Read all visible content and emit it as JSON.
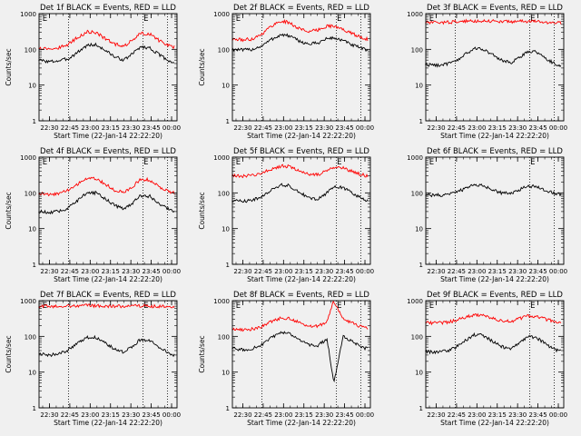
{
  "figure": {
    "background": "#f0f0f0",
    "events_color": "#000000",
    "lld_color": "#ff0000",
    "dotted_line_color": "#000000"
  },
  "chart_data": [
    {
      "type": "line",
      "title": "Det 1f BLACK = Events, RED = LLD",
      "ylabel": "Counts/sec",
      "xlabel": "Start Time (22-Jan-14 22:22:20)",
      "yscale": "log",
      "ylim": [
        1,
        1000
      ],
      "yticks": [
        "1",
        "10",
        "100",
        "1000"
      ],
      "xticks": [
        "22:30",
        "22:45",
        "23:00",
        "23:15",
        "23:30",
        "23:45",
        "00:00"
      ],
      "markers": [
        "E",
        "E"
      ],
      "series": [
        {
          "role": "Events",
          "color": "#000000",
          "x": [
            "22:22",
            "22:30",
            "22:37",
            "22:44",
            "22:51",
            "22:58",
            "23:04",
            "23:11",
            "23:18",
            "23:25",
            "23:32",
            "23:37",
            "23:44",
            "23:51",
            "23:58",
            "00:02"
          ],
          "y": [
            50,
            45,
            48,
            55,
            85,
            130,
            135,
            95,
            62,
            50,
            80,
            118,
            110,
            70,
            48,
            42
          ]
        },
        {
          "role": "LLD",
          "color": "#ff0000",
          "x": [
            "22:22",
            "22:30",
            "22:37",
            "22:44",
            "22:51",
            "22:58",
            "23:04",
            "23:11",
            "23:18",
            "23:25",
            "23:32",
            "23:37",
            "23:44",
            "23:51",
            "23:58",
            "00:02"
          ],
          "y": [
            110,
            105,
            110,
            140,
            220,
            310,
            300,
            200,
            140,
            125,
            190,
            280,
            270,
            175,
            125,
            115
          ]
        }
      ]
    },
    {
      "type": "line",
      "title": "Det 2f BLACK = Events, RED = LLD",
      "ylabel": "Counts/sec",
      "xlabel": "Start Time (22-Jan-14 22:22:20)",
      "yscale": "log",
      "ylim": [
        1,
        1000
      ],
      "yticks": [
        "1",
        "10",
        "100",
        "1000"
      ],
      "xticks": [
        "22:30",
        "22:45",
        "23:00",
        "23:15",
        "23:30",
        "23:45",
        "00:00"
      ],
      "markers": [
        "E",
        "E"
      ],
      "series": [
        {
          "role": "Events",
          "color": "#000000",
          "x": [
            "22:22",
            "22:30",
            "22:37",
            "22:44",
            "22:51",
            "22:58",
            "23:04",
            "23:11",
            "23:18",
            "23:25",
            "23:32",
            "23:37",
            "23:44",
            "23:51",
            "23:58",
            "00:02"
          ],
          "y": [
            100,
            95,
            100,
            125,
            190,
            255,
            240,
            175,
            140,
            150,
            200,
            210,
            175,
            130,
            105,
            95
          ]
        },
        {
          "role": "LLD",
          "color": "#ff0000",
          "x": [
            "22:22",
            "22:30",
            "22:37",
            "22:44",
            "22:51",
            "22:58",
            "23:04",
            "23:11",
            "23:18",
            "23:25",
            "23:32",
            "23:37",
            "23:44",
            "23:51",
            "23:58",
            "00:02"
          ],
          "y": [
            190,
            185,
            195,
            270,
            450,
            620,
            560,
            390,
            320,
            340,
            460,
            440,
            360,
            270,
            215,
            190
          ]
        }
      ]
    },
    {
      "type": "line",
      "title": "Det 3f BLACK = Events, RED = LLD",
      "ylabel": "",
      "xlabel": "Start Time (22-Jan-14 22:22:20)",
      "yscale": "log",
      "ylim": [
        1,
        1000
      ],
      "yticks": [
        "1",
        "10",
        "100",
        "1000"
      ],
      "xticks": [
        "22:30",
        "22:45",
        "23:00",
        "23:15",
        "23:30",
        "23:45",
        "00:00"
      ],
      "markers": [
        "E",
        "E"
      ],
      "series": [
        {
          "role": "Events",
          "color": "#000000",
          "x": [
            "22:22",
            "22:30",
            "22:37",
            "22:44",
            "22:51",
            "22:58",
            "23:04",
            "23:11",
            "23:18",
            "23:25",
            "23:32",
            "23:37",
            "23:44",
            "23:51",
            "23:58",
            "00:02"
          ],
          "y": [
            38,
            36,
            38,
            45,
            70,
            105,
            105,
            72,
            50,
            42,
            60,
            88,
            85,
            55,
            38,
            34
          ]
        },
        {
          "role": "LLD",
          "color": "#ff0000",
          "x": [
            "22:22",
            "22:30",
            "22:37",
            "22:44",
            "22:51",
            "22:58",
            "23:04",
            "23:11",
            "23:18",
            "23:25",
            "23:32",
            "23:37",
            "23:44",
            "23:51",
            "23:58",
            "00:02"
          ],
          "y": [
            560,
            560,
            570,
            590,
            610,
            620,
            630,
            620,
            600,
            600,
            610,
            610,
            600,
            570,
            560,
            550
          ]
        }
      ]
    },
    {
      "type": "line",
      "title": "Det 4f BLACK = Events, RED = LLD",
      "ylabel": "Counts/sec",
      "xlabel": "Start Time (22-Jan-14 22:22:20)",
      "yscale": "log",
      "ylim": [
        1,
        1000
      ],
      "yticks": [
        "1",
        "10",
        "100",
        "1000"
      ],
      "xticks": [
        "22:30",
        "22:45",
        "23:00",
        "23:15",
        "23:30",
        "23:45",
        "00:00"
      ],
      "markers": [
        "E",
        "E"
      ],
      "series": [
        {
          "role": "Events",
          "color": "#000000",
          "x": [
            "22:22",
            "22:30",
            "22:37",
            "22:44",
            "22:51",
            "22:58",
            "23:04",
            "23:11",
            "23:18",
            "23:25",
            "23:32",
            "23:37",
            "23:44",
            "23:51",
            "23:58",
            "00:02"
          ],
          "y": [
            30,
            28,
            30,
            38,
            62,
            100,
            100,
            68,
            45,
            36,
            55,
            85,
            80,
            50,
            34,
            30
          ]
        },
        {
          "role": "LLD",
          "color": "#ff0000",
          "x": [
            "22:22",
            "22:30",
            "22:37",
            "22:44",
            "22:51",
            "22:58",
            "23:04",
            "23:11",
            "23:18",
            "23:25",
            "23:32",
            "23:37",
            "23:44",
            "23:51",
            "23:58",
            "00:02"
          ],
          "y": [
            95,
            90,
            95,
            120,
            180,
            265,
            260,
            175,
            120,
            105,
            160,
            240,
            230,
            145,
            110,
            100
          ]
        }
      ]
    },
    {
      "type": "line",
      "title": "Det 5f BLACK = Events, RED = LLD",
      "ylabel": "Counts/sec",
      "xlabel": "Start Time (22-Jan-14 22:22:20)",
      "yscale": "log",
      "ylim": [
        1,
        1000
      ],
      "yticks": [
        "1",
        "10",
        "100",
        "1000"
      ],
      "xticks": [
        "22:30",
        "22:45",
        "23:00",
        "23:15",
        "23:30",
        "23:45",
        "00:00"
      ],
      "markers": [
        "E",
        "E"
      ],
      "series": [
        {
          "role": "Events",
          "color": "#000000",
          "x": [
            "22:22",
            "22:30",
            "22:37",
            "22:44",
            "22:51",
            "22:58",
            "23:04",
            "23:11",
            "23:18",
            "23:25",
            "23:32",
            "23:37",
            "23:44",
            "23:51",
            "23:58",
            "00:02"
          ],
          "y": [
            60,
            58,
            62,
            80,
            120,
            165,
            160,
            110,
            75,
            65,
            100,
            145,
            140,
            95,
            68,
            62
          ]
        },
        {
          "role": "LLD",
          "color": "#ff0000",
          "x": [
            "22:22",
            "22:30",
            "22:37",
            "22:44",
            "22:51",
            "22:58",
            "23:04",
            "23:11",
            "23:18",
            "23:25",
            "23:32",
            "23:37",
            "23:44",
            "23:51",
            "23:58",
            "00:02"
          ],
          "y": [
            300,
            295,
            305,
            360,
            460,
            560,
            550,
            430,
            340,
            320,
            420,
            520,
            500,
            390,
            320,
            300
          ]
        }
      ]
    },
    {
      "type": "line",
      "title": "Det 6f BLACK = Events, RED = LLD",
      "ylabel": "",
      "xlabel": "Start Time (22-Jan-14 22:22:20)",
      "yscale": "log",
      "ylim": [
        1,
        1000
      ],
      "yticks": [
        "1",
        "10",
        "100",
        "1000"
      ],
      "xticks": [
        "22:30",
        "22:45",
        "23:00",
        "23:15",
        "23:30",
        "23:45",
        "00:00"
      ],
      "markers": [
        "E",
        "E"
      ],
      "series": [
        {
          "role": "Events",
          "color": "#000000",
          "x": [
            "22:22",
            "22:30",
            "22:37",
            "22:44",
            "22:51",
            "22:58",
            "23:04",
            "23:11",
            "23:18",
            "23:25",
            "23:32",
            "23:37",
            "23:44",
            "23:51",
            "23:58",
            "00:02"
          ],
          "y": [
            88,
            85,
            88,
            100,
            130,
            165,
            160,
            125,
            100,
            95,
            125,
            155,
            150,
            118,
            96,
            90
          ]
        }
      ]
    },
    {
      "type": "line",
      "title": "Det 7f BLACK = Events, RED = LLD",
      "ylabel": "Counts/sec",
      "xlabel": "Start Time (22-Jan-14 22:22:20)",
      "yscale": "log",
      "ylim": [
        1,
        1000
      ],
      "yticks": [
        "1",
        "10",
        "100",
        "1000"
      ],
      "xticks": [
        "22:30",
        "22:45",
        "23:00",
        "23:15",
        "23:30",
        "23:45",
        "00:00"
      ],
      "markers": [
        "E",
        "E"
      ],
      "series": [
        {
          "role": "Events",
          "color": "#000000",
          "x": [
            "22:22",
            "22:30",
            "22:37",
            "22:44",
            "22:51",
            "22:58",
            "23:04",
            "23:11",
            "23:18",
            "23:25",
            "23:32",
            "23:37",
            "23:44",
            "23:51",
            "23:58",
            "00:02"
          ],
          "y": [
            32,
            30,
            32,
            42,
            65,
            95,
            95,
            65,
            44,
            36,
            55,
            82,
            78,
            50,
            34,
            30
          ]
        },
        {
          "role": "LLD",
          "color": "#ff0000",
          "x": [
            "22:22",
            "22:30",
            "22:37",
            "22:44",
            "22:51",
            "22:58",
            "23:04",
            "23:11",
            "23:18",
            "23:25",
            "23:32",
            "23:37",
            "23:44",
            "23:51",
            "23:58",
            "00:02"
          ],
          "y": [
            680,
            690,
            700,
            710,
            720,
            730,
            720,
            700,
            690,
            700,
            710,
            720,
            700,
            690,
            680,
            670
          ]
        }
      ]
    },
    {
      "type": "line",
      "title": "Det 8f BLACK = Events, RED = LLD",
      "ylabel": "Counts/sec",
      "xlabel": "Start Time (22-Jan-14 22:22:20)",
      "yscale": "log",
      "ylim": [
        1,
        1000
      ],
      "yticks": [
        "1",
        "10",
        "100",
        "1000"
      ],
      "xticks": [
        "22:30",
        "22:45",
        "23:00",
        "23:15",
        "23:30",
        "23:45",
        "00:00"
      ],
      "markers": [
        "E",
        "E"
      ],
      "series": [
        {
          "role": "Events",
          "color": "#000000",
          "x": [
            "22:22",
            "22:30",
            "22:37",
            "22:44",
            "22:51",
            "22:58",
            "23:04",
            "23:11",
            "23:18",
            "23:25",
            "23:32",
            "23:37",
            "23:44",
            "23:51",
            "23:58",
            "00:02"
          ],
          "y": [
            45,
            42,
            45,
            58,
            90,
            125,
            120,
            82,
            58,
            55,
            85,
            5,
            100,
            70,
            50,
            44
          ]
        },
        {
          "role": "LLD",
          "color": "#ff0000",
          "x": [
            "22:22",
            "22:30",
            "22:37",
            "22:44",
            "22:51",
            "22:58",
            "23:04",
            "23:11",
            "23:18",
            "23:25",
            "23:32",
            "23:37",
            "23:44",
            "23:51",
            "23:58",
            "00:02"
          ],
          "y": [
            160,
            155,
            160,
            190,
            260,
            330,
            320,
            250,
            195,
            190,
            260,
            1000,
            300,
            230,
            180,
            165
          ]
        }
      ]
    },
    {
      "type": "line",
      "title": "Det 9f BLACK = Events, RED = LLD",
      "ylabel": "",
      "xlabel": "Start Time (22-Jan-14 22:22:20)",
      "yscale": "log",
      "ylim": [
        1,
        1000
      ],
      "yticks": [
        "1",
        "10",
        "100",
        "1000"
      ],
      "xticks": [
        "22:30",
        "22:45",
        "23:00",
        "23:15",
        "23:30",
        "23:45",
        "00:00"
      ],
      "markers": [
        "E",
        "E"
      ],
      "series": [
        {
          "role": "Events",
          "color": "#000000",
          "x": [
            "22:22",
            "22:30",
            "22:37",
            "22:44",
            "22:51",
            "22:58",
            "23:04",
            "23:11",
            "23:18",
            "23:25",
            "23:32",
            "23:37",
            "23:44",
            "23:51",
            "23:58",
            "00:02"
          ],
          "y": [
            38,
            36,
            38,
            48,
            75,
            110,
            108,
            75,
            52,
            44,
            68,
            98,
            92,
            60,
            42,
            38
          ]
        },
        {
          "role": "LLD",
          "color": "#ff0000",
          "x": [
            "22:22",
            "22:30",
            "22:37",
            "22:44",
            "22:51",
            "22:58",
            "23:04",
            "23:11",
            "23:18",
            "23:25",
            "23:32",
            "23:37",
            "23:44",
            "23:51",
            "23:58",
            "00:02"
          ],
          "y": [
            240,
            235,
            245,
            280,
            340,
            390,
            380,
            320,
            270,
            265,
            320,
            370,
            360,
            300,
            255,
            245
          ]
        }
      ]
    }
  ]
}
